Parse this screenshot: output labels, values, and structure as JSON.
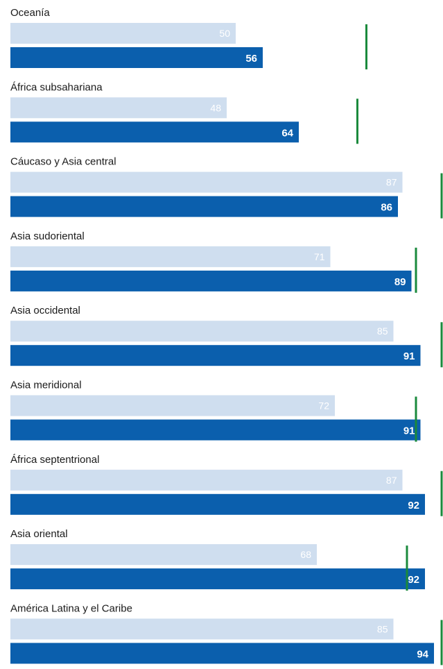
{
  "chart_data": {
    "type": "bar",
    "orientation": "horizontal",
    "categories": [
      "Oceanía",
      "África subsahariana",
      "Cáucaso y Asia central",
      "Asia sudoriental",
      "Asia occidental",
      "Asia meridional",
      "África septentrional",
      "Asia oriental",
      "América Latina y el Caribe"
    ],
    "series": [
      {
        "values": [
          50,
          48,
          87,
          71,
          85,
          72,
          87,
          68,
          85
        ],
        "color": "#cfdeef"
      },
      {
        "values": [
          56,
          64,
          86,
          89,
          91,
          91,
          92,
          92,
          94
        ],
        "color": "#0b5fad"
      }
    ],
    "markers": [
      79,
      77,
      97,
      90,
      97,
      90,
      97,
      88,
      97
    ],
    "marker_color": "#1a8a3c",
    "xlim": [
      0,
      100
    ],
    "grid": false
  }
}
